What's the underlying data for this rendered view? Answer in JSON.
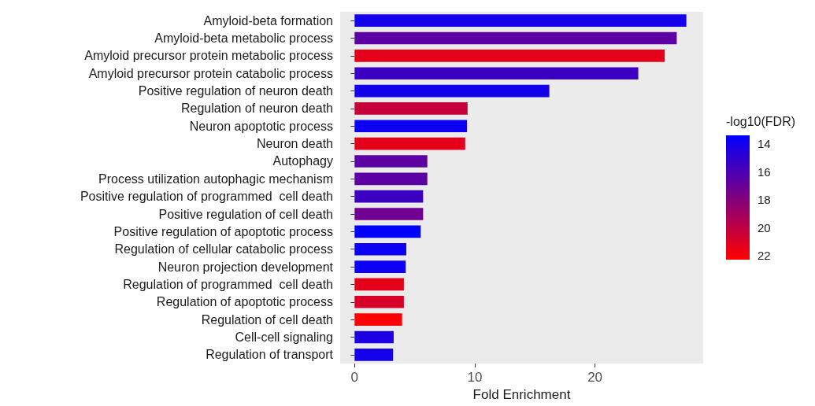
{
  "chart_data": {
    "type": "bar",
    "orientation": "horizontal",
    "xlabel": "Fold Enrichment",
    "clabel": "-log10(FDR)",
    "categories": [
      "Amyloid-beta formation",
      "Amyloid-beta metabolic process",
      "Amyloid precursor protein metabolic process",
      "Amyloid precursor protein catabolic process",
      "Positive regulation of neuron death",
      "Regulation of neuron death",
      "Neuron apoptotic process",
      "Neuron death",
      "Autophagy",
      "Process utilization autophagic mechanism",
      "Positive regulation of programmed  cell death",
      "Positive regulation of cell death",
      "Positive regulation of apoptotic process",
      "Regulation of cellular catabolic process",
      "Neuron projection development",
      "Regulation of programmed  cell death",
      "Regulation of apoptotic process",
      "Regulation of cell death",
      "Cell-cell signaling",
      "Regulation of transport"
    ],
    "values": [
      27.6,
      26.8,
      25.8,
      23.6,
      16.2,
      9.4,
      9.35,
      9.2,
      6.05,
      6.05,
      5.7,
      5.7,
      5.5,
      4.3,
      4.25,
      4.1,
      4.1,
      3.95,
      3.25,
      3.2
    ],
    "cvalues": [
      14.0,
      16.5,
      21.3,
      15.4,
      14.0,
      20.2,
      13.7,
      21.3,
      16.5,
      16.5,
      15.4,
      17.2,
      13.3,
      13.7,
      13.7,
      21.3,
      20.8,
      22.2,
      14.3,
      14.0
    ],
    "clim": [
      13.3,
      22.2
    ],
    "cticks": [
      14,
      16,
      18,
      20,
      22
    ],
    "xlim": [
      -1.2,
      29
    ],
    "xticks": [
      0,
      10,
      20
    ],
    "grid": false
  }
}
